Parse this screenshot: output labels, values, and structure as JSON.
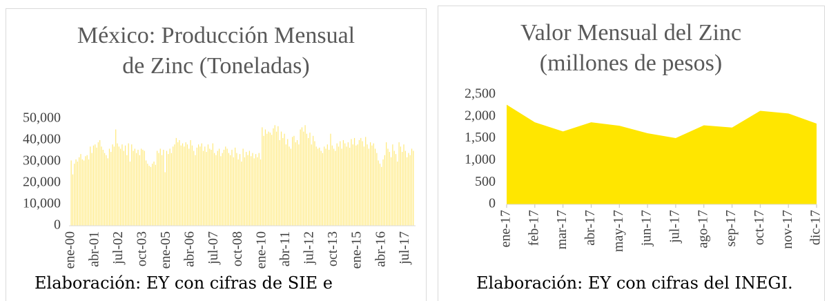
{
  "chart_data": [
    {
      "type": "bar",
      "title_lines": [
        "México: Producción Mensual",
        "de Zinc (Toneladas)"
      ],
      "color": "#FFE97A",
      "categories": [
        "ene-00",
        null,
        null,
        null,
        null,
        null,
        null,
        null,
        null,
        null,
        null,
        null,
        null,
        null,
        null,
        "abr-01",
        null,
        null,
        null,
        null,
        null,
        null,
        null,
        null,
        null,
        null,
        null,
        null,
        null,
        null,
        "jul-02",
        null,
        null,
        null,
        null,
        null,
        null,
        null,
        null,
        null,
        null,
        null,
        null,
        null,
        null,
        "oct-03",
        null,
        null,
        null,
        null,
        null,
        null,
        null,
        null,
        null,
        null,
        null,
        null,
        null,
        null,
        "ene-05",
        null,
        null,
        null,
        null,
        null,
        null,
        null,
        null,
        null,
        null,
        null,
        null,
        null,
        null,
        "abr-06",
        null,
        null,
        null,
        null,
        null,
        null,
        null,
        null,
        null,
        null,
        null,
        null,
        null,
        null,
        "jul-07",
        null,
        null,
        null,
        null,
        null,
        null,
        null,
        null,
        null,
        null,
        null,
        null,
        null,
        null,
        "oct-08",
        null,
        null,
        null,
        null,
        null,
        null,
        null,
        null,
        null,
        null,
        null,
        null,
        null,
        null,
        "ene-10",
        null,
        null,
        null,
        null,
        null,
        null,
        null,
        null,
        null,
        null,
        null,
        null,
        null,
        null,
        "abr-11",
        null,
        null,
        null,
        null,
        null,
        null,
        null,
        null,
        null,
        null,
        null,
        null,
        null,
        null,
        "jul-12",
        null,
        null,
        null,
        null,
        null,
        null,
        null,
        null,
        null,
        null,
        null,
        null,
        null,
        null,
        "oct-13",
        null,
        null,
        null,
        null,
        null,
        null,
        null,
        null,
        null,
        null,
        null,
        null,
        null,
        null,
        "ene-15",
        null,
        null,
        null,
        null,
        null,
        null,
        null,
        null,
        null,
        null,
        null,
        null,
        null,
        null,
        "abr-16",
        null,
        null,
        null,
        null,
        null,
        null,
        null,
        null,
        null,
        null,
        null,
        null,
        null,
        null,
        "jul-17",
        null,
        null,
        null,
        null,
        null
      ],
      "values": [
        30500,
        24000,
        29000,
        31000,
        30000,
        32000,
        33500,
        31000,
        30500,
        32500,
        33000,
        31000,
        37000,
        34000,
        37500,
        38000,
        36500,
        39000,
        40000,
        37000,
        35500,
        34000,
        33000,
        31500,
        36000,
        34500,
        38000,
        37000,
        45000,
        38500,
        37000,
        36000,
        38000,
        35000,
        37500,
        33000,
        38500,
        30000,
        38000,
        35000,
        36000,
        34000,
        35500,
        33000,
        36000,
        35500,
        35000,
        30500,
        29000,
        28000,
        27500,
        29000,
        30000,
        28500,
        35000,
        34000,
        36000,
        33000,
        35500,
        25000,
        35000,
        33500,
        36000,
        34000,
        37000,
        38000,
        41000,
        39000,
        40000,
        37500,
        38500,
        37000,
        39000,
        38000,
        36000,
        40000,
        37500,
        35000,
        33000,
        36500,
        38000,
        37000,
        38500,
        35000,
        37000,
        34500,
        38000,
        36000,
        35500,
        38500,
        34000,
        33000,
        35000,
        36000,
        32500,
        34000,
        35500,
        37000,
        36000,
        34000,
        33000,
        35500,
        32000,
        36500,
        34000,
        31000,
        33500,
        30000,
        36000,
        32000,
        34500,
        33000,
        35000,
        32500,
        34000,
        31500,
        33500,
        32000,
        34000,
        31000,
        46000,
        42000,
        45000,
        43000,
        44000,
        43500,
        42500,
        45500,
        47000,
        44000,
        46500,
        40000,
        44000,
        41000,
        43000,
        38000,
        40500,
        37000,
        36000,
        41500,
        42000,
        39000,
        40000,
        38000,
        45000,
        46000,
        44000,
        47000,
        43000,
        41000,
        43500,
        38000,
        42000,
        39500,
        37000,
        36000,
        36500,
        35000,
        34000,
        37000,
        36000,
        38000,
        35500,
        43000,
        37500,
        36000,
        35000,
        38500,
        37000,
        39500,
        36000,
        40000,
        38500,
        37000,
        39000,
        36500,
        40500,
        38000,
        41000,
        37500,
        38000,
        40000,
        41000,
        39500,
        37000,
        41500,
        38000,
        36000,
        39000,
        37500,
        38500,
        36000,
        34000,
        30500,
        29000,
        27500,
        31000,
        33000,
        39000,
        36000,
        34500,
        32000,
        38000,
        35000,
        33500,
        30000,
        39000,
        37000,
        34500,
        38000,
        35000,
        32000,
        34000,
        33000,
        36000,
        35000
      ],
      "ylim": [
        0,
        50000
      ],
      "yticks": [
        0,
        {
          "value": 10000,
          "label": "10,000"
        },
        {
          "value": 20000,
          "label": "20,000"
        },
        {
          "value": 30000,
          "label": "30,000"
        },
        {
          "value": 40000,
          "label": "40,000"
        },
        {
          "value": 50000,
          "label": "50,000"
        }
      ],
      "source": "Elaboración: EY con cifras de SIE e"
    },
    {
      "type": "area",
      "title_lines": [
        "Valor Mensual del Zinc",
        "(millones de pesos)"
      ],
      "color": "#FFE600",
      "categories": [
        "ene-17",
        "feb-17",
        "mar-17",
        "abr-17",
        "may-17",
        "jun-17",
        "jul-17",
        "ago-17",
        "sep-17",
        "oct-17",
        "nov-17",
        "dic-17"
      ],
      "values": [
        2270,
        1870,
        1660,
        1870,
        1790,
        1620,
        1510,
        1800,
        1750,
        2130,
        2070,
        1840
      ],
      "ylim": [
        0,
        2500
      ],
      "yticks": [
        0,
        500,
        {
          "value": 1000,
          "label": "1,000"
        },
        {
          "value": 1500,
          "label": "1,500"
        },
        {
          "value": 2000,
          "label": "2,000"
        },
        {
          "value": 2500,
          "label": "2,500"
        }
      ],
      "source": "Elaboración: EY con cifras del INEGI."
    }
  ]
}
